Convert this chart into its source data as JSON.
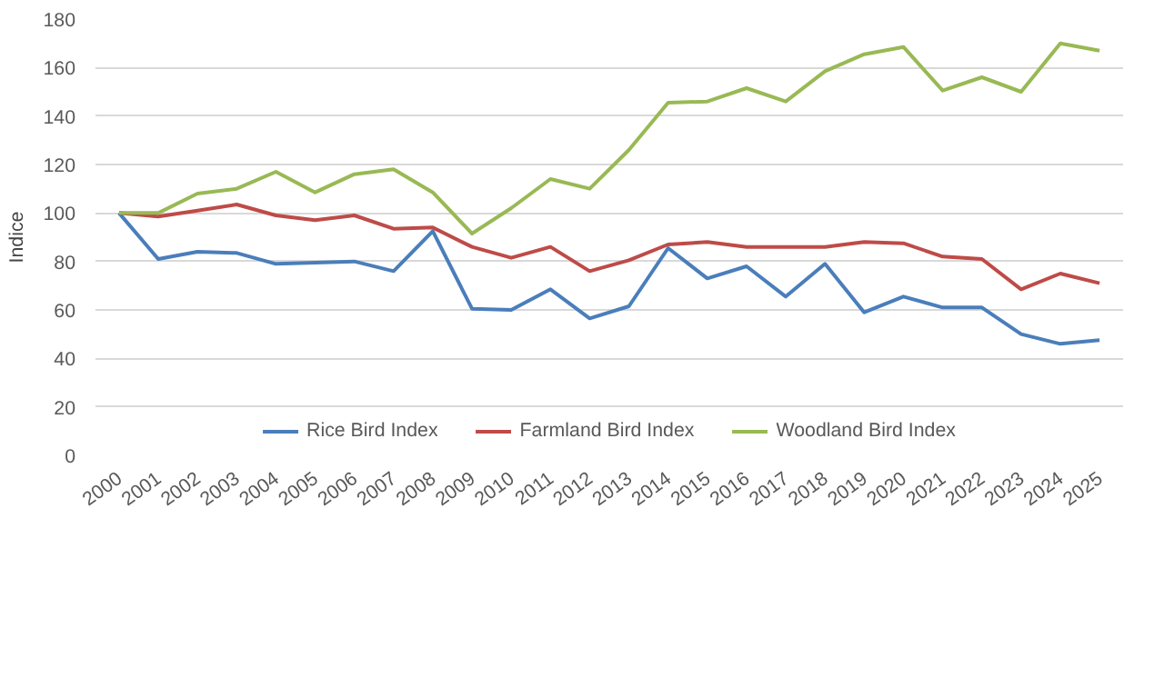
{
  "chart_data": {
    "type": "line",
    "ylabel": "Indice",
    "categories": [
      "2000",
      "2001",
      "2002",
      "2003",
      "2004",
      "2005",
      "2006",
      "2007",
      "2008",
      "2009",
      "2010",
      "2011",
      "2012",
      "2013",
      "2014",
      "2015",
      "2016",
      "2017",
      "2018",
      "2019",
      "2020",
      "2021",
      "2022",
      "2023",
      "2024",
      "2025"
    ],
    "series": [
      {
        "name": "Rice Bird Index",
        "color": "#4a7ebb",
        "values": [
          100,
          81,
          84,
          83.5,
          79,
          79.5,
          80,
          76,
          92.5,
          60.5,
          60,
          68.5,
          56.5,
          61.5,
          85.5,
          73,
          78,
          65.5,
          79,
          59,
          65.5,
          61,
          61,
          50,
          46,
          47.5
        ]
      },
      {
        "name": "Farmland Bird Index",
        "color": "#be4b48",
        "values": [
          100,
          98.5,
          101,
          103.5,
          99,
          97,
          99,
          93.5,
          94,
          86,
          81.5,
          86,
          76,
          80.5,
          87,
          88,
          86,
          86,
          86,
          88,
          87.5,
          82,
          81,
          68.5,
          75,
          71
        ]
      },
      {
        "name": "Woodland Bird Index",
        "color": "#98b954",
        "values": [
          100,
          100,
          108,
          110,
          117,
          108.5,
          116,
          118,
          108.5,
          91.5,
          102,
          114,
          110,
          126,
          145.5,
          146,
          151.5,
          146,
          158.5,
          165.5,
          168.5,
          150.5,
          156,
          150,
          170,
          167
        ]
      }
    ],
    "ylim": [
      0,
      180
    ],
    "yticks": [
      0,
      20,
      40,
      60,
      80,
      100,
      120,
      140,
      160,
      180
    ],
    "grid": "y",
    "legend": "bottom",
    "marker": "none",
    "line_style": "solid"
  }
}
